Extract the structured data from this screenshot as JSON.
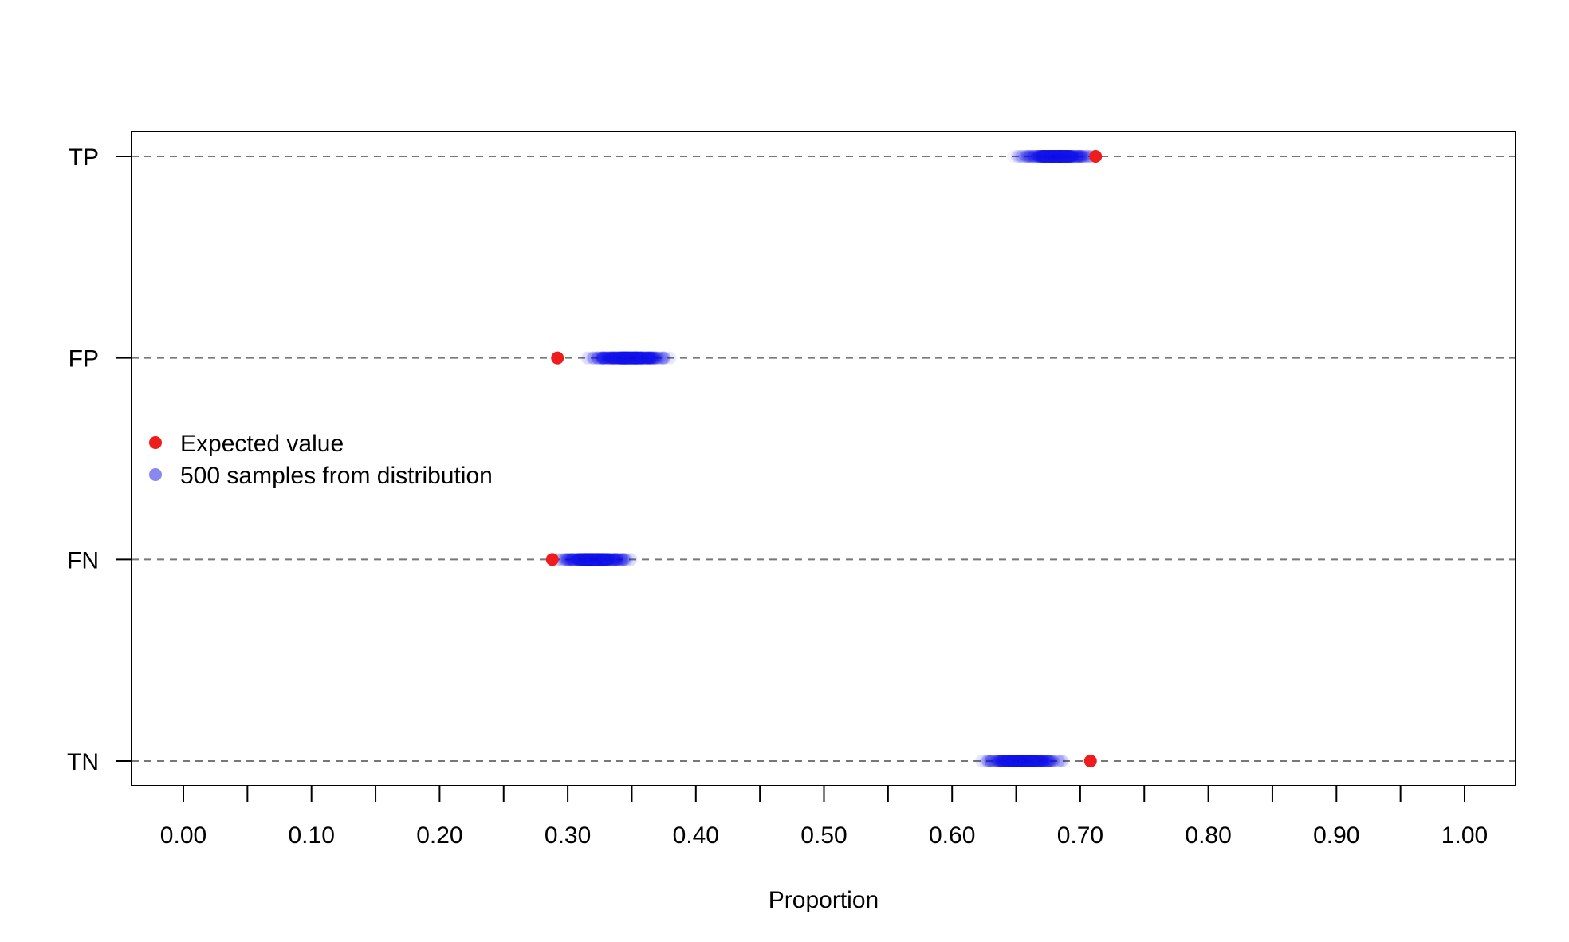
{
  "chart_data": {
    "type": "scatter",
    "title": "",
    "xlabel": "Proportion",
    "ylabel": "",
    "xlim": [
      -0.04,
      1.04
    ],
    "x_ticks": [
      0.0,
      0.05,
      0.1,
      0.15,
      0.2,
      0.25,
      0.3,
      0.35,
      0.4,
      0.45,
      0.5,
      0.55,
      0.6,
      0.65,
      0.7,
      0.75,
      0.8,
      0.85,
      0.9,
      0.95,
      1.0
    ],
    "x_tick_labels": [
      "0.00",
      "0.10",
      "0.20",
      "0.30",
      "0.40",
      "0.50",
      "0.60",
      "0.70",
      "0.80",
      "0.90",
      "1.00"
    ],
    "categories": [
      "TP",
      "FP",
      "FN",
      "TN"
    ],
    "grid": "dashed horizontal line per category",
    "legend": {
      "placement": "left-middle",
      "entries": [
        {
          "label": "Expected value",
          "color": "#ee1c1c"
        },
        {
          "label": "500 samples from distribution",
          "color": "#8888ee"
        }
      ]
    },
    "series": [
      {
        "name": "Expected value",
        "color": "#ee1c1c",
        "points": [
          {
            "category": "TP",
            "x": 0.712
          },
          {
            "category": "FP",
            "x": 0.292
          },
          {
            "category": "FN",
            "x": 0.288
          },
          {
            "category": "TN",
            "x": 0.708
          }
        ]
      },
      {
        "name": "500 samples from distribution",
        "color": "#1a1aee",
        "sample_count": 500,
        "distributions": [
          {
            "category": "TP",
            "min": 0.645,
            "max": 0.715,
            "mean": 0.681
          },
          {
            "category": "FP",
            "min": 0.305,
            "max": 0.382,
            "mean": 0.347
          },
          {
            "category": "FN",
            "min": 0.288,
            "max": 0.356,
            "mean": 0.321
          },
          {
            "category": "TN",
            "min": 0.617,
            "max": 0.693,
            "mean": 0.655
          }
        ]
      }
    ]
  }
}
